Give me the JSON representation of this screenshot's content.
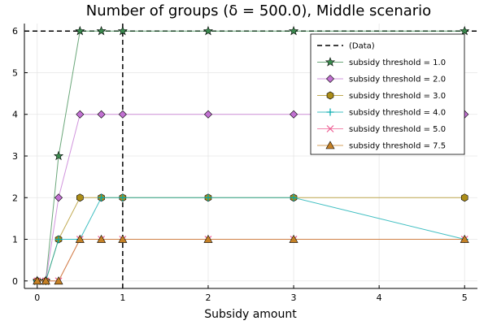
{
  "chart_data": {
    "type": "line",
    "title": "Number of groups (δ = 500.0), Middle scenario",
    "xlabel": "Subsidy amount",
    "ylabel": "",
    "xlim": [
      -0.15,
      5.15
    ],
    "ylim": [
      -0.18,
      6.18
    ],
    "xticks": [
      0,
      1,
      2,
      3,
      4,
      5
    ],
    "yticks": [
      0,
      1,
      2,
      3,
      4,
      5,
      6
    ],
    "grid": true,
    "legend_position": "top-right",
    "reference_lines": [
      {
        "name": "(Data)",
        "orientation": "horizontal",
        "value": 6,
        "color": "#000000",
        "dash": true
      },
      {
        "name": "",
        "orientation": "vertical",
        "value": 1,
        "color": "#000000",
        "dash": true
      }
    ],
    "x": [
      0,
      0.1,
      0.25,
      0.5,
      0.75,
      1,
      2,
      3,
      5
    ],
    "series": [
      {
        "name": "subsidy threshold = 1.0",
        "values": [
          0,
          0,
          3,
          6,
          6,
          6,
          6,
          6,
          6
        ],
        "color": "#3a8a4e",
        "marker": "star"
      },
      {
        "name": "subsidy threshold = 2.0",
        "values": [
          0,
          0,
          2,
          4,
          4,
          4,
          4,
          4,
          4
        ],
        "color": "#c271d2",
        "marker": "diamond"
      },
      {
        "name": "subsidy threshold = 3.0",
        "values": [
          0,
          0,
          1,
          2,
          2,
          2,
          2,
          2,
          2
        ],
        "color": "#ac8d18",
        "marker": "hexagon"
      },
      {
        "name": "subsidy threshold = 4.0",
        "values": [
          0,
          0,
          1,
          1,
          2,
          2,
          2,
          2,
          1
        ],
        "color": "#00a9ad",
        "marker": "cross"
      },
      {
        "name": "subsidy threshold = 5.0",
        "values": [
          0,
          0,
          0,
          1,
          1,
          1,
          1,
          1,
          1
        ],
        "color": "#ed5d92",
        "marker": "x"
      },
      {
        "name": "subsidy threshold = 7.5",
        "values": [
          0,
          0,
          0,
          1,
          1,
          1,
          1,
          1,
          1
        ],
        "color": "#c68125",
        "marker": "triangle"
      }
    ]
  }
}
